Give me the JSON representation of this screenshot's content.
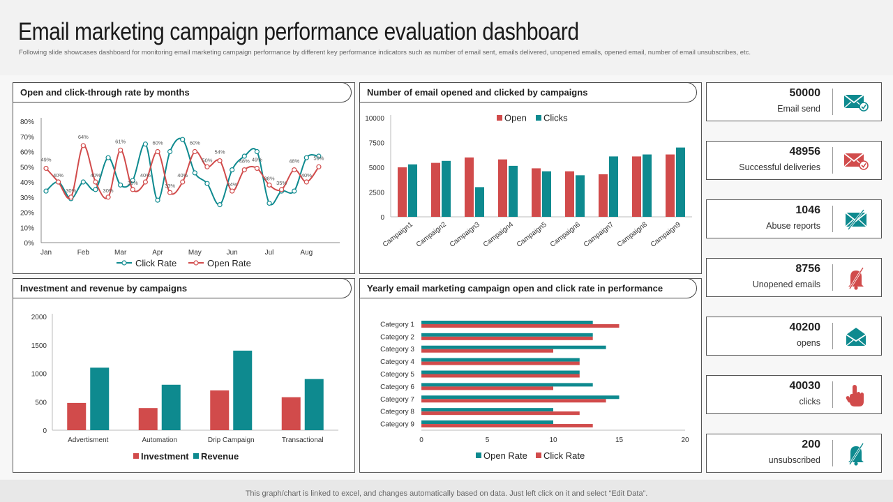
{
  "header": {
    "title": "Email marketing campaign performance evaluation dashboard",
    "subtitle": "Following slide showcases dashboard for monitoring email marketing campaign performance by different key performance indicators such as number of email sent, emails delivered, unopened emails, opened email, number of email unsubscribes, etc."
  },
  "footer": {
    "note": "This graph/chart is linked to excel, and changes automatically based on data. Just left click on it and select “Edit Data”."
  },
  "colors": {
    "red": "#d14b4b",
    "teal": "#0e8a8f",
    "axis": "#888888",
    "text": "#333333"
  },
  "panels": {
    "p1": "Open and click-through  rate by months",
    "p2": "Number of email opened and clicked by campaigns",
    "p3": "Investment and revenue by campaigns",
    "p4": "Yearly email marketing campaign open and click rate in performance"
  },
  "kpis": [
    {
      "value": "50000",
      "label": "Email send",
      "icon": "email-check-icon",
      "color": "#0e8a8f"
    },
    {
      "value": "48956",
      "label": "Successful deliveries",
      "icon": "email-check-icon",
      "color": "#d14b4b"
    },
    {
      "value": "1046",
      "label": "Abuse reports",
      "icon": "email-blocked-icon",
      "color": "#0e8a8f"
    },
    {
      "value": "8756",
      "label": "Unopened  emails",
      "icon": "bell-off-icon",
      "color": "#d14b4b"
    },
    {
      "value": "40200",
      "label": "opens",
      "icon": "open-envelope-icon",
      "color": "#0e8a8f"
    },
    {
      "value": "40030",
      "label": "clicks",
      "icon": "hand-pointer-icon",
      "color": "#d14b4b"
    },
    {
      "value": "200",
      "label": "unsubscribed",
      "icon": "bell-off-icon",
      "color": "#0e8a8f"
    }
  ],
  "chart_data": [
    {
      "id": "monthly-rates",
      "type": "line",
      "title": "Open and click-through  rate by months",
      "x_ticks": [
        "Jan",
        "Feb",
        "Mar",
        "Apr",
        "May",
        "Jun",
        "Jul",
        "Aug"
      ],
      "y_ticks": [
        "0%",
        "10%",
        "20%",
        "30%",
        "40%",
        "50%",
        "60%",
        "70%",
        "80%"
      ],
      "ylim": [
        0,
        80
      ],
      "series": [
        {
          "name": "Click Rate",
          "color": "#0e8a8f",
          "x": [
            0,
            0.33,
            0.67,
            1,
            1.33,
            1.67,
            2,
            2.33,
            2.67,
            3,
            3.33,
            3.67,
            4,
            4.33,
            4.67,
            5,
            5.33,
            5.67,
            6,
            6.33,
            6.67,
            7,
            7.33
          ],
          "values": [
            34,
            40,
            29,
            40,
            35,
            56,
            38,
            41,
            65,
            28,
            60,
            68,
            46,
            39,
            25,
            48,
            57,
            60,
            26,
            34,
            34,
            56,
            57
          ]
        },
        {
          "name": "Open Rate",
          "color": "#d14b4b",
          "x": [
            0,
            0.33,
            0.67,
            1,
            1.33,
            1.67,
            2,
            2.33,
            2.67,
            3,
            3.33,
            3.67,
            4,
            4.33,
            4.67,
            5,
            5.33,
            5.67,
            6,
            6.33,
            6.67,
            7,
            7.33
          ],
          "values": [
            49,
            40,
            30,
            64,
            40,
            30,
            61,
            35,
            40,
            60,
            33,
            40,
            60,
            50,
            54,
            34,
            48,
            49,
            38,
            35,
            48,
            40,
            50
          ]
        }
      ],
      "point_labels": {
        "Open Rate": [
          [
            0,
            "49%"
          ],
          [
            3,
            "64%"
          ],
          [
            6,
            "61%"
          ],
          [
            9,
            "60%"
          ],
          [
            12,
            "60%"
          ],
          [
            14,
            "54%"
          ],
          [
            16,
            "48%"
          ],
          [
            17,
            "49%"
          ],
          [
            20,
            "48%"
          ],
          [
            22,
            "50%"
          ]
        ],
        "Open Rate low": [
          [
            1,
            "40%"
          ],
          [
            2,
            "30%"
          ],
          [
            4,
            "40%"
          ],
          [
            5,
            "30%"
          ],
          [
            7,
            "35%"
          ],
          [
            8,
            "40%"
          ],
          [
            10,
            "33%"
          ],
          [
            11,
            "40%"
          ],
          [
            13,
            "50%"
          ],
          [
            15,
            "34%"
          ],
          [
            18,
            "38%"
          ],
          [
            19,
            "35%"
          ],
          [
            21,
            "40%"
          ]
        ]
      },
      "legend": [
        "Click Rate",
        "Open Rate"
      ]
    },
    {
      "id": "opened-clicked",
      "type": "bar",
      "title": "Number of email opened and clicked by campaigns",
      "categories": [
        "Campaign1",
        "Campaign2",
        "Campaign3",
        "Campaign4",
        "Campaign5",
        "Campaign6",
        "Campaign7",
        "Campaign8",
        "Campaign9"
      ],
      "series": [
        {
          "name": "Open",
          "color": "#d14b4b",
          "values": [
            5000,
            5450,
            6000,
            5800,
            4900,
            4600,
            4300,
            6100,
            6300
          ]
        },
        {
          "name": "Clicks",
          "color": "#0e8a8f",
          "values": [
            5300,
            5650,
            3000,
            5150,
            4600,
            4200,
            6100,
            6300,
            7000
          ]
        }
      ],
      "y_ticks": [
        "0",
        "2500",
        "5000",
        "7500",
        "10000"
      ],
      "ylim": [
        0,
        10000
      ],
      "legend": [
        "Open",
        "Clicks"
      ]
    },
    {
      "id": "investment-revenue",
      "type": "bar",
      "title": "Investment and revenue by campaigns",
      "categories": [
        "Advertisment",
        "Automation",
        "Drip Campaign",
        "Transactional"
      ],
      "series": [
        {
          "name": "Investment",
          "color": "#d14b4b",
          "values": [
            480,
            390,
            700,
            580
          ]
        },
        {
          "name": "Revenue",
          "color": "#0e8a8f",
          "values": [
            1100,
            800,
            1400,
            900
          ]
        }
      ],
      "y_ticks": [
        "0",
        "500",
        "1000",
        "1500",
        "2000"
      ],
      "ylim": [
        0,
        2000
      ],
      "legend": [
        "Investment",
        "Revenue"
      ]
    },
    {
      "id": "yearly-open-click",
      "type": "bar",
      "orientation": "horizontal",
      "title": "Yearly email marketing campaign open and click rate in performance",
      "categories": [
        "Category 1",
        "Category 2",
        "Category 3",
        "Category 4",
        "Category 5",
        "Category 6",
        "Category 7",
        "Category 8",
        "Category 9"
      ],
      "series": [
        {
          "name": "Open Rate",
          "color": "#0e8a8f",
          "values": [
            13,
            13,
            14,
            12,
            12,
            13,
            15,
            10,
            10
          ]
        },
        {
          "name": "Click Rate",
          "color": "#d14b4b",
          "values": [
            15,
            13,
            10,
            12,
            12,
            10,
            14,
            12,
            13
          ]
        }
      ],
      "x_ticks": [
        "0",
        "5",
        "10",
        "15",
        "20"
      ],
      "xlim": [
        0,
        20
      ],
      "legend": [
        "Open Rate",
        "Click Rate"
      ]
    }
  ]
}
